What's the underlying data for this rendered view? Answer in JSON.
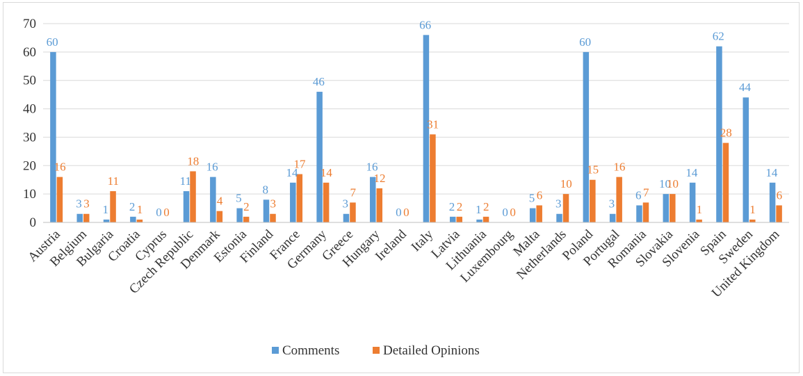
{
  "chart_data": {
    "type": "bar",
    "categories": [
      "Austria",
      "Belgium",
      "Bulgaria",
      "Croatia",
      "Cyprus",
      "Czech Republic",
      "Denmark",
      "Estonia",
      "Finland",
      "France",
      "Germany",
      "Greece",
      "Hungary",
      "Ireland",
      "Italy",
      "Latvia",
      "Lithuania",
      "Luxembourg",
      "Malta",
      "Netherlands",
      "Poland",
      "Portugal",
      "Romania",
      "Slovakia",
      "Slovenia",
      "Spain",
      "Sweden",
      "United Kingdom"
    ],
    "series": [
      {
        "name": "Comments",
        "color": "#5b9bd5",
        "values": [
          60,
          3,
          1,
          2,
          0,
          11,
          16,
          5,
          8,
          14,
          46,
          3,
          16,
          0,
          66,
          2,
          1,
          0,
          5,
          3,
          60,
          3,
          6,
          10,
          14,
          62,
          44,
          14
        ]
      },
      {
        "name": "Detailed Opinions",
        "color": "#ed7d31",
        "values": [
          16,
          3,
          11,
          1,
          0,
          18,
          4,
          2,
          3,
          17,
          14,
          7,
          12,
          0,
          31,
          2,
          2,
          0,
          6,
          10,
          15,
          16,
          7,
          10,
          1,
          28,
          1,
          6
        ]
      }
    ],
    "title": "",
    "xlabel": "",
    "ylabel": "",
    "ylim": [
      0,
      70
    ],
    "yticks": [
      "0",
      "10",
      "20",
      "30",
      "40",
      "50",
      "60",
      "70"
    ],
    "grid": true,
    "legend_position": "bottom",
    "data_labels": true
  }
}
